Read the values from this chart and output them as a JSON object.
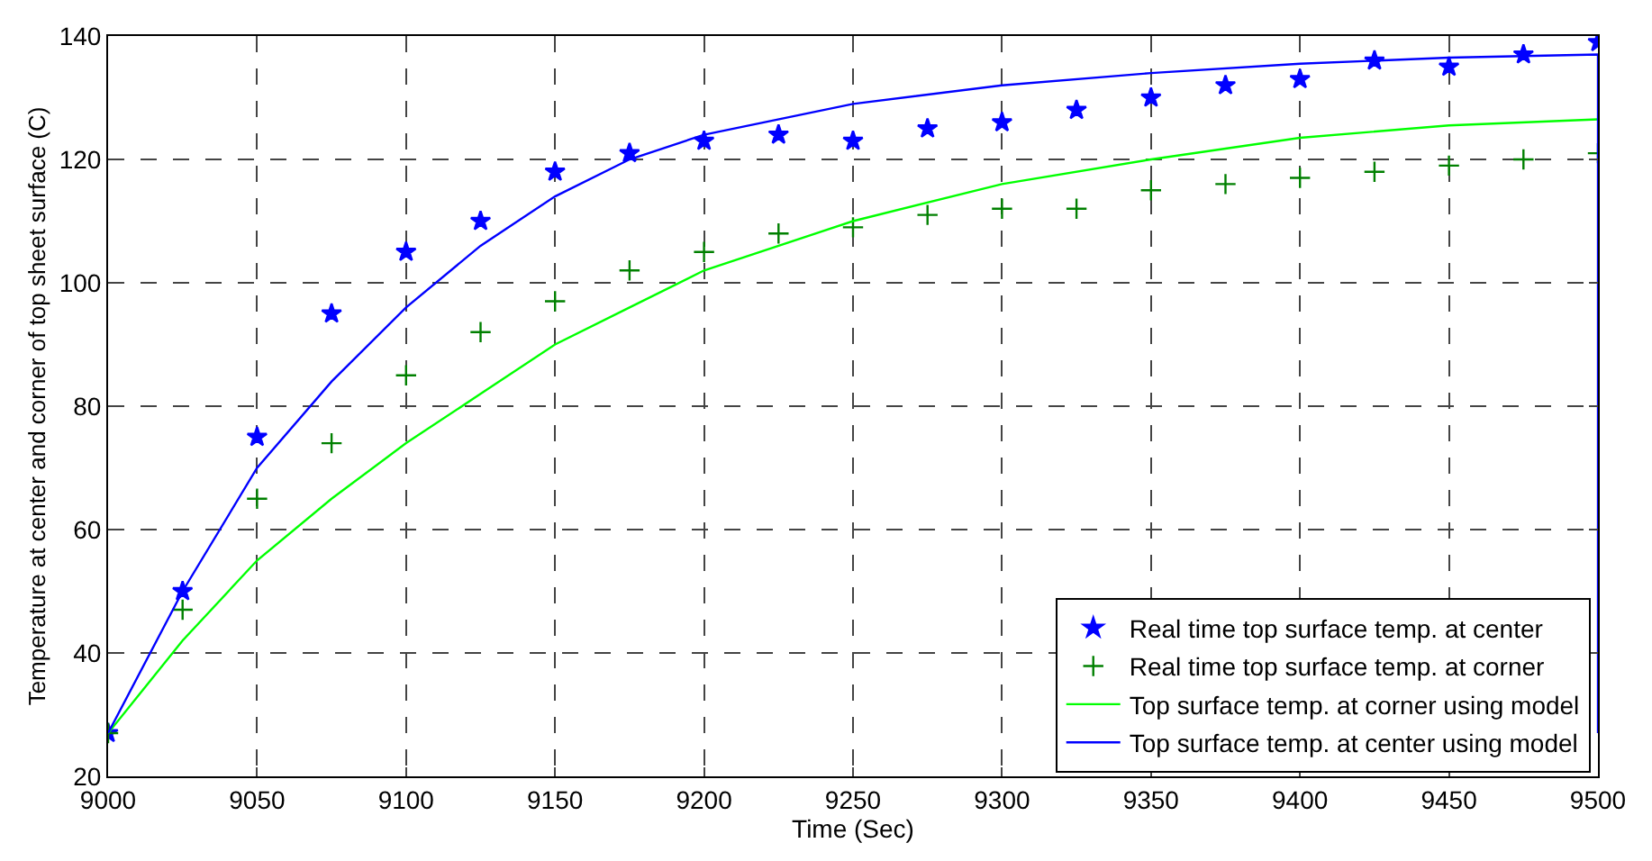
{
  "chart_data": {
    "type": "scatter",
    "xlabel": "Time (Sec)",
    "ylabel": "Temperature at center and corner of top sheet surface (C)",
    "xlim": [
      9000,
      9500
    ],
    "xticks": [
      9000,
      9050,
      9100,
      9150,
      9200,
      9250,
      9300,
      9350,
      9400,
      9450,
      9500
    ],
    "ylim": [
      20,
      140
    ],
    "yticks": [
      20,
      40,
      60,
      80,
      100,
      120,
      140
    ],
    "grid": true,
    "legend": "bottom right",
    "series": [
      {
        "name": "Real time top surface temp. at center",
        "marker": "star",
        "color": "#0000ff",
        "x": [
          9000,
          9025,
          9050,
          9075,
          9100,
          9125,
          9150,
          9175,
          9200,
          9225,
          9250,
          9275,
          9300,
          9325,
          9350,
          9375,
          9400,
          9425,
          9450,
          9475,
          9500
        ],
        "values": [
          27,
          50,
          75,
          95,
          105,
          110,
          118,
          121,
          123,
          124,
          123,
          125,
          126,
          128,
          130,
          132,
          133,
          136,
          135,
          137,
          139
        ]
      },
      {
        "name": "Real time top surface temp. at corner",
        "marker": "cross",
        "color": "#008000",
        "x": [
          9000,
          9025,
          9050,
          9075,
          9100,
          9125,
          9150,
          9175,
          9200,
          9225,
          9250,
          9275,
          9300,
          9325,
          9350,
          9375,
          9400,
          9425,
          9450,
          9475,
          9500
        ],
        "values": [
          27,
          47,
          65,
          74,
          85,
          92,
          97,
          102,
          105,
          108,
          109,
          111,
          112,
          112,
          115,
          116,
          117,
          118,
          119,
          120,
          121
        ]
      },
      {
        "name": "Top surface temp. at corner using model",
        "type": "line",
        "marker": "none",
        "line_style": "solid",
        "color": "#00ff00",
        "x": [
          9000,
          9025,
          9050,
          9075,
          9100,
          9125,
          9150,
          9175,
          9200,
          9250,
          9300,
          9350,
          9400,
          9450,
          9500
        ],
        "values": [
          27,
          42,
          55,
          65,
          74,
          82,
          90,
          96,
          102,
          110,
          116,
          120,
          123.5,
          125.5,
          126.5
        ]
      },
      {
        "name": "Top surface temp. at center using model",
        "type": "line",
        "marker": "none",
        "line_style": "solid",
        "color": "#0000ff",
        "x": [
          9000,
          9025,
          9050,
          9075,
          9100,
          9125,
          9150,
          9175,
          9200,
          9250,
          9300,
          9350,
          9400,
          9450,
          9500,
          9500
        ],
        "values": [
          27,
          50,
          70,
          84,
          96,
          106,
          114,
          120,
          124,
          129,
          132,
          134,
          135.5,
          136.5,
          137,
          27
        ]
      }
    ]
  }
}
